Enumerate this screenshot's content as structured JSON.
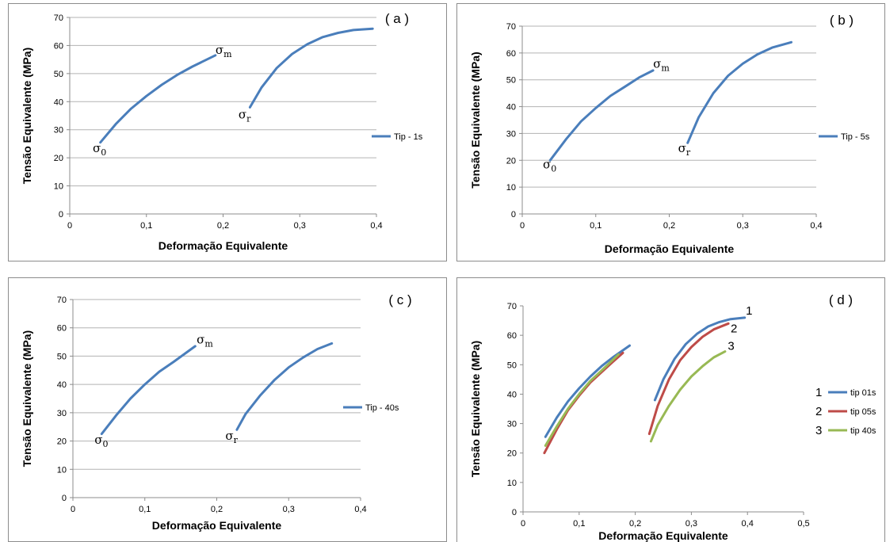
{
  "chart_data": [
    {
      "type": "line",
      "panel_label": "( a )",
      "xlabel": "Deformação Equivalente",
      "ylabel": "Tensão Equivalente (MPa)",
      "xlim": [
        0,
        0.4
      ],
      "ylim": [
        0,
        70
      ],
      "x_ticks": [
        "0",
        "0,1",
        "0,2",
        "0,3",
        "0,4"
      ],
      "y_ticks": [
        "0",
        "10",
        "20",
        "30",
        "40",
        "50",
        "60",
        "70"
      ],
      "grid": true,
      "legend_position": "right",
      "series": [
        {
          "name": "Tip - 1s",
          "color": "#4a7ebb",
          "segments": [
            [
              [
                0.04,
                25.5
              ],
              [
                0.06,
                32
              ],
              [
                0.08,
                37.5
              ],
              [
                0.1,
                42
              ],
              [
                0.12,
                46
              ],
              [
                0.14,
                49.5
              ],
              [
                0.16,
                52.5
              ],
              [
                0.19,
                56.5
              ]
            ],
            [
              [
                0.235,
                38
              ],
              [
                0.25,
                45
              ],
              [
                0.27,
                52
              ],
              [
                0.29,
                57
              ],
              [
                0.31,
                60.5
              ],
              [
                0.33,
                63
              ],
              [
                0.35,
                64.5
              ],
              [
                0.37,
                65.5
              ],
              [
                0.395,
                66
              ]
            ]
          ]
        }
      ],
      "annotations": [
        {
          "symbol": "σ",
          "sub": "0",
          "x": 0.03,
          "y": 22
        },
        {
          "symbol": "σ",
          "sub": "m",
          "x": 0.19,
          "y": 57
        },
        {
          "symbol": "σ",
          "sub": "r",
          "x": 0.22,
          "y": 34
        }
      ]
    },
    {
      "type": "line",
      "panel_label": "( b )",
      "xlabel": "Deformação Equivalente",
      "ylabel": "Tensão Equivalente (MPa)",
      "xlim": [
        0,
        0.4
      ],
      "ylim": [
        0,
        70
      ],
      "x_ticks": [
        "0",
        "0,1",
        "0,2",
        "0,3",
        "0,4"
      ],
      "y_ticks": [
        "0",
        "10",
        "20",
        "30",
        "40",
        "50",
        "60",
        "70"
      ],
      "grid": true,
      "legend_position": "right",
      "series": [
        {
          "name": "Tip - 5s",
          "color": "#4a7ebb",
          "segments": [
            [
              [
                0.038,
                20
              ],
              [
                0.06,
                28
              ],
              [
                0.08,
                34.5
              ],
              [
                0.1,
                39.5
              ],
              [
                0.12,
                44
              ],
              [
                0.14,
                47.5
              ],
              [
                0.16,
                51
              ],
              [
                0.178,
                53.5
              ]
            ],
            [
              [
                0.225,
                26.5
              ],
              [
                0.24,
                36
              ],
              [
                0.26,
                45
              ],
              [
                0.28,
                51.5
              ],
              [
                0.3,
                56
              ],
              [
                0.32,
                59.5
              ],
              [
                0.34,
                62
              ],
              [
                0.366,
                64
              ]
            ]
          ]
        }
      ],
      "annotations": [
        {
          "symbol": "σ",
          "sub": "0",
          "x": 0.028,
          "y": 17
        },
        {
          "symbol": "σ",
          "sub": "m",
          "x": 0.178,
          "y": 54.5
        },
        {
          "symbol": "σ",
          "sub": "r",
          "x": 0.212,
          "y": 23
        }
      ]
    },
    {
      "type": "line",
      "panel_label": "( c )",
      "xlabel": "Deformação Equivalente",
      "ylabel": "Tensão Equivalente (MPa)",
      "xlim": [
        0,
        0.4
      ],
      "ylim": [
        0,
        70
      ],
      "x_ticks": [
        "0",
        "0,1",
        "0,2",
        "0,3",
        "0,4"
      ],
      "y_ticks": [
        "0",
        "10",
        "20",
        "30",
        "40",
        "50",
        "60",
        "70"
      ],
      "grid": true,
      "legend_position": "right",
      "series": [
        {
          "name": "Tip - 40s",
          "color": "#4a7ebb",
          "segments": [
            [
              [
                0.04,
                22.5
              ],
              [
                0.06,
                29
              ],
              [
                0.08,
                35
              ],
              [
                0.1,
                40
              ],
              [
                0.12,
                44.5
              ],
              [
                0.14,
                48
              ],
              [
                0.17,
                53.5
              ]
            ],
            [
              [
                0.228,
                24
              ],
              [
                0.24,
                29.5
              ],
              [
                0.26,
                36
              ],
              [
                0.28,
                41.5
              ],
              [
                0.3,
                46
              ],
              [
                0.32,
                49.5
              ],
              [
                0.34,
                52.5
              ],
              [
                0.36,
                54.5
              ]
            ]
          ]
        }
      ],
      "annotations": [
        {
          "symbol": "σ",
          "sub": "0",
          "x": 0.03,
          "y": 19
        },
        {
          "symbol": "σ",
          "sub": "m",
          "x": 0.172,
          "y": 54.5
        },
        {
          "symbol": "σ",
          "sub": "r",
          "x": 0.212,
          "y": 20.5
        }
      ]
    },
    {
      "type": "line",
      "panel_label": "( d )",
      "xlabel": "Deformação Equivalente",
      "ylabel": "Tensão Equivalente (MPa)",
      "xlim": [
        0,
        0.5
      ],
      "ylim": [
        0,
        70
      ],
      "x_ticks": [
        "0",
        "0,1",
        "0,2",
        "0,3",
        "0,4",
        "0,5"
      ],
      "y_ticks": [
        "0",
        "10",
        "20",
        "30",
        "40",
        "50",
        "60",
        "70"
      ],
      "grid": false,
      "legend_position": "right",
      "legend_numbers": [
        "1",
        "2",
        "3"
      ],
      "series": [
        {
          "name": "tip 01s",
          "color": "#4a7ebb",
          "segments": [
            [
              [
                0.04,
                25.5
              ],
              [
                0.06,
                32
              ],
              [
                0.08,
                37.5
              ],
              [
                0.1,
                42
              ],
              [
                0.12,
                46
              ],
              [
                0.14,
                49.5
              ],
              [
                0.16,
                52.5
              ],
              [
                0.19,
                56.5
              ]
            ],
            [
              [
                0.235,
                38
              ],
              [
                0.25,
                45
              ],
              [
                0.27,
                52
              ],
              [
                0.29,
                57
              ],
              [
                0.31,
                60.5
              ],
              [
                0.33,
                63
              ],
              [
                0.35,
                64.5
              ],
              [
                0.37,
                65.5
              ],
              [
                0.395,
                66
              ]
            ]
          ]
        },
        {
          "name": "tip 05s",
          "color": "#be4b48",
          "segments": [
            [
              [
                0.038,
                20
              ],
              [
                0.06,
                28
              ],
              [
                0.08,
                34.5
              ],
              [
                0.1,
                39.5
              ],
              [
                0.12,
                44
              ],
              [
                0.14,
                47.5
              ],
              [
                0.16,
                51
              ],
              [
                0.178,
                54
              ]
            ],
            [
              [
                0.225,
                26.5
              ],
              [
                0.24,
                36
              ],
              [
                0.26,
                45
              ],
              [
                0.28,
                51.5
              ],
              [
                0.3,
                56
              ],
              [
                0.32,
                59.5
              ],
              [
                0.34,
                62
              ],
              [
                0.366,
                64
              ]
            ]
          ]
        },
        {
          "name": "tip 40s",
          "color": "#98b954",
          "segments": [
            [
              [
                0.04,
                22.5
              ],
              [
                0.06,
                29
              ],
              [
                0.08,
                35
              ],
              [
                0.1,
                40
              ],
              [
                0.12,
                44.5
              ],
              [
                0.14,
                48
              ],
              [
                0.17,
                53.5
              ]
            ],
            [
              [
                0.228,
                24
              ],
              [
                0.24,
                29.5
              ],
              [
                0.26,
                36
              ],
              [
                0.28,
                41.5
              ],
              [
                0.3,
                46
              ],
              [
                0.32,
                49.5
              ],
              [
                0.34,
                52.5
              ],
              [
                0.36,
                54.5
              ]
            ]
          ]
        }
      ],
      "curve_labels": [
        {
          "text": "1",
          "x": 0.397,
          "y": 67
        },
        {
          "text": "2",
          "x": 0.37,
          "y": 61
        },
        {
          "text": "3",
          "x": 0.365,
          "y": 55
        }
      ]
    }
  ]
}
